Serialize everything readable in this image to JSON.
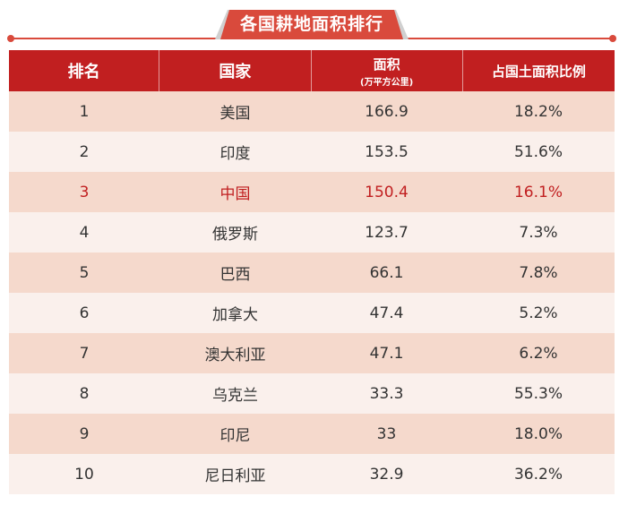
{
  "title": "各国耕地面积排行",
  "colors": {
    "header_bg": "#c11f20",
    "row_odd": "#f5d9cc",
    "row_even": "#faf0ec",
    "highlight_text": "#c11f20",
    "accent_line": "#d94a3c"
  },
  "headers": {
    "rank": "排名",
    "country": "国家",
    "area": "面积",
    "area_unit": "(万平方公里)",
    "ratio": "占国土面积比例"
  },
  "rows": [
    {
      "rank": "1",
      "country": "美国",
      "area": "166.9",
      "ratio": "18.2%"
    },
    {
      "rank": "2",
      "country": "印度",
      "area": "153.5",
      "ratio": "51.6%"
    },
    {
      "rank": "3",
      "country": "中国",
      "area": "150.4",
      "ratio": "16.1%"
    },
    {
      "rank": "4",
      "country": "俄罗斯",
      "area": "123.7",
      "ratio": "7.3%"
    },
    {
      "rank": "5",
      "country": "巴西",
      "area": "66.1",
      "ratio": "7.8%"
    },
    {
      "rank": "6",
      "country": "加拿大",
      "area": "47.4",
      "ratio": "5.2%"
    },
    {
      "rank": "7",
      "country": "澳大利亚",
      "area": "47.1",
      "ratio": "6.2%"
    },
    {
      "rank": "8",
      "country": "乌克兰",
      "area": "33.3",
      "ratio": "55.3%"
    },
    {
      "rank": "9",
      "country": "印尼",
      "area": "33",
      "ratio": "18.0%"
    },
    {
      "rank": "10",
      "country": "尼日利亚",
      "area": "32.9",
      "ratio": "36.2%"
    }
  ],
  "highlight_country": "中国"
}
